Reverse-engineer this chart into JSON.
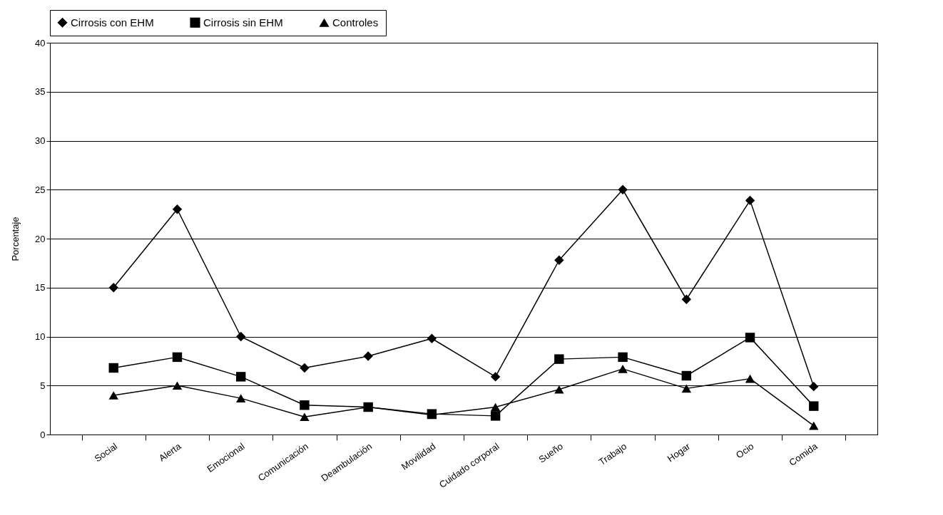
{
  "chart_data": {
    "type": "line",
    "ylabel": "Porcentaje",
    "categories": [
      "Social",
      "Alerta",
      "Emocional",
      "Comunicación",
      "Deambulación",
      "Movilidad",
      "Cuidado corporal",
      "Sueño",
      "Trabajo",
      "Hogar",
      "Ocio",
      "Comida"
    ],
    "series": [
      {
        "name": "Cirrosis con EHM",
        "color": "#000000",
        "marker": "diamond",
        "values": [
          15,
          23,
          10,
          6.8,
          8,
          9.8,
          5.9,
          17.8,
          25,
          13.8,
          23.9,
          4.9
        ]
      },
      {
        "name": "Cirrosis sin EHM",
        "color": "#000000",
        "marker": "square",
        "values": [
          6.8,
          7.9,
          5.9,
          3,
          2.8,
          2.1,
          1.9,
          7.7,
          7.9,
          6,
          9.9,
          2.9
        ]
      },
      {
        "name": "Controles",
        "color": "#000000",
        "marker": "triangle",
        "values": [
          4,
          5,
          3.7,
          1.8,
          2.8,
          2,
          2.8,
          4.6,
          6.7,
          4.7,
          5.7,
          0.9
        ]
      }
    ],
    "ylim": [
      0,
      40
    ],
    "yticks": [
      0,
      5,
      10,
      15,
      20,
      25,
      30,
      35,
      40
    ],
    "grid": "y",
    "legend": "top",
    "line_style": "solid"
  }
}
